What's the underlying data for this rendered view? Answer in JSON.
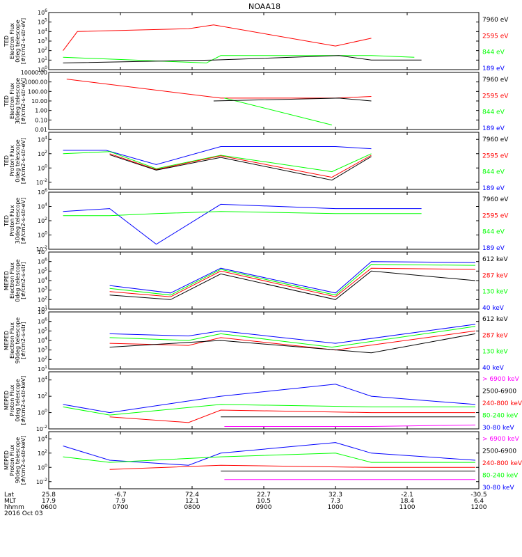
{
  "title": "NOAA18",
  "footer": {
    "row_labels": [
      "Lat",
      "MLT",
      "hhmm",
      "2016 Oct 03"
    ],
    "ticks": [
      {
        "lat": "25.8",
        "mlt": "17.9",
        "hhmm": "0600"
      },
      {
        "lat": "-6.7",
        "mlt": "7.9",
        "hhmm": "0700"
      },
      {
        "lat": "72.4",
        "mlt": "12.1",
        "hhmm": "0800"
      },
      {
        "lat": "22.7",
        "mlt": "10.5",
        "hhmm": "0900"
      },
      {
        "lat": "32.3",
        "mlt": "7.3",
        "hhmm": "1000"
      },
      {
        "lat": "-2.1",
        "mlt": "18.4",
        "hhmm": "1100"
      },
      {
        "lat": "-30.5",
        "mlt": "6.4",
        "hhmm": "1200"
      }
    ]
  },
  "colors": {
    "black": "#000000",
    "red": "#ff0000",
    "green": "#00ff00",
    "blue": "#0000ff",
    "magenta": "#ff00ff",
    "axis": "#000000"
  },
  "chart_data": [
    {
      "type": "line",
      "instrument": "TED",
      "ylabel": [
        "TED",
        "Electron Flux",
        "0deg telescope",
        "[#/cm2-s-str-eV]"
      ],
      "yscale": "log",
      "ylim": [
        1,
        1000000
      ],
      "ytick_labels": [
        "10^0",
        "10^1",
        "10^2",
        "10^3",
        "10^4",
        "10^5",
        "10^6"
      ],
      "legend": [
        {
          "label": "7960 eV",
          "color": "black"
        },
        {
          "label": "2595 eV",
          "color": "red"
        },
        {
          "label": "844 eV",
          "color": "green"
        },
        {
          "label": "189 eV",
          "color": "blue"
        }
      ],
      "series": [
        {
          "color": "red",
          "points": [
            [
              0.2,
              100
            ],
            [
              0.4,
              10000
            ],
            [
              1.95,
              20000
            ],
            [
              2.3,
              50000
            ],
            [
              4.0,
              300
            ],
            [
              4.5,
              2000
            ]
          ]
        },
        {
          "color": "green",
          "points": [
            [
              0.2,
              20
            ],
            [
              2.2,
              5
            ],
            [
              2.4,
              30
            ],
            [
              4.5,
              30
            ],
            [
              5.1,
              20
            ]
          ]
        },
        {
          "color": "black",
          "points": [
            [
              0.2,
              5
            ],
            [
              2.3,
              10
            ],
            [
              4.05,
              30
            ],
            [
              4.5,
              10
            ],
            [
              5.2,
              10
            ]
          ]
        }
      ]
    },
    {
      "type": "line",
      "instrument": "TED",
      "ylabel": [
        "TED",
        "Electron Flux",
        "30deg telescope",
        "[#/cm2-s-str-eV]"
      ],
      "yscale": "log",
      "ylim": [
        0.01,
        10000
      ],
      "ytick_labels": [
        "0.01",
        "0.10",
        "1.00",
        "10.00",
        "100.00",
        "1000.00",
        "10000.00"
      ],
      "legend": [
        {
          "label": "7960 eV",
          "color": "black"
        },
        {
          "label": "2595 eV",
          "color": "red"
        },
        {
          "label": "844 eV",
          "color": "green"
        },
        {
          "label": "189 eV",
          "color": "blue"
        }
      ],
      "series": [
        {
          "color": "red",
          "points": [
            [
              0.25,
              2000
            ],
            [
              2.4,
              20
            ],
            [
              4.0,
              20
            ],
            [
              4.5,
              30
            ]
          ]
        },
        {
          "color": "green",
          "points": [
            [
              2.45,
              20
            ],
            [
              3.95,
              0.03
            ]
          ]
        },
        {
          "color": "black",
          "points": [
            [
              2.3,
              10
            ],
            [
              4.05,
              20
            ],
            [
              4.5,
              10
            ]
          ]
        }
      ]
    },
    {
      "type": "line",
      "instrument": "TED",
      "ylabel": [
        "TED",
        "Proton Flux",
        "0deg telescope",
        "[#/cm2-s-str-eV]"
      ],
      "yscale": "log",
      "ylim": [
        0.001,
        100000
      ],
      "ytick_labels": [
        "10^-2",
        "10^0",
        "10^2",
        "10^4"
      ],
      "legend": [
        {
          "label": "7960 eV",
          "color": "black"
        },
        {
          "label": "2595 eV",
          "color": "red"
        },
        {
          "label": "844 eV",
          "color": "green"
        },
        {
          "label": "189 eV",
          "color": "blue"
        }
      ],
      "series": [
        {
          "color": "blue",
          "points": [
            [
              0.2,
              300
            ],
            [
              0.8,
              300
            ],
            [
              1.5,
              3
            ],
            [
              2.4,
              1000
            ],
            [
              4.0,
              1000
            ],
            [
              4.5,
              500
            ]
          ]
        },
        {
          "color": "green",
          "points": [
            [
              0.2,
              100
            ],
            [
              0.85,
              200
            ],
            [
              1.5,
              0.8
            ],
            [
              2.4,
              60
            ],
            [
              3.95,
              0.3
            ],
            [
              4.5,
              100
            ]
          ]
        },
        {
          "color": "red",
          "points": [
            [
              0.85,
              100
            ],
            [
              1.5,
              0.6
            ],
            [
              2.4,
              50
            ],
            [
              3.95,
              0.05
            ],
            [
              4.5,
              60
            ]
          ]
        },
        {
          "color": "black",
          "points": [
            [
              0.85,
              70
            ],
            [
              1.5,
              0.5
            ],
            [
              2.4,
              30
            ],
            [
              3.95,
              0.02
            ],
            [
              4.5,
              40
            ]
          ]
        }
      ]
    },
    {
      "type": "line",
      "instrument": "TED",
      "ylabel": [
        "TED",
        "Proton Flux",
        "30deg telescope",
        "[#/cm2-s-str-eV]"
      ],
      "yscale": "log",
      "ylim": [
        0.01,
        1000000
      ],
      "ytick_labels": [
        "10^-2",
        "10^0",
        "10^2",
        "10^4",
        "10^6"
      ],
      "legend": [
        {
          "label": "7960 eV",
          "color": "black"
        },
        {
          "label": "2595 eV",
          "color": "red"
        },
        {
          "label": "844 eV",
          "color": "green"
        },
        {
          "label": "189 eV",
          "color": "blue"
        }
      ],
      "series": [
        {
          "color": "blue",
          "points": [
            [
              0.2,
              2000
            ],
            [
              0.85,
              5000
            ],
            [
              1.5,
              0.05
            ],
            [
              2.4,
              20000
            ],
            [
              4.0,
              5000
            ],
            [
              5.2,
              5000
            ]
          ]
        },
        {
          "color": "green",
          "points": [
            [
              0.2,
              500
            ],
            [
              0.85,
              500
            ],
            [
              1.5,
              1000
            ],
            [
              2.4,
              2000
            ],
            [
              4.0,
              1000
            ],
            [
              5.2,
              1000
            ]
          ]
        }
      ]
    },
    {
      "type": "line",
      "instrument": "MEPED",
      "ylabel": [
        "MEPED",
        "Electron Flux",
        "0deg telescope",
        "[#/cm2-s-str]"
      ],
      "yscale": "log",
      "ylim": [
        10,
        10000000
      ],
      "ytick_labels": [
        "10^1",
        "10^2",
        "10^3",
        "10^4",
        "10^5",
        "10^6",
        "10^7"
      ],
      "legend": [
        {
          "label": "612 keV",
          "color": "black"
        },
        {
          "label": "287 keV",
          "color": "red"
        },
        {
          "label": "130 keV",
          "color": "green"
        },
        {
          "label": "40 keV",
          "color": "blue"
        }
      ],
      "series": [
        {
          "color": "blue",
          "points": [
            [
              0.85,
              3000
            ],
            [
              1.7,
              500
            ],
            [
              2.4,
              200000
            ],
            [
              4.0,
              500
            ],
            [
              4.5,
              1000000
            ],
            [
              5.95,
              800000
            ]
          ]
        },
        {
          "color": "green",
          "points": [
            [
              0.85,
              1500
            ],
            [
              1.7,
              300
            ],
            [
              2.4,
              150000
            ],
            [
              4.0,
              300
            ],
            [
              4.5,
              500000
            ],
            [
              5.95,
              400000
            ]
          ]
        },
        {
          "color": "red",
          "points": [
            [
              0.85,
              700
            ],
            [
              1.7,
              200
            ],
            [
              2.4,
              100000
            ],
            [
              4.0,
              200
            ],
            [
              4.5,
              200000
            ],
            [
              5.95,
              150000
            ]
          ]
        },
        {
          "color": "black",
          "points": [
            [
              0.85,
              300
            ],
            [
              1.7,
              100
            ],
            [
              2.4,
              50000
            ],
            [
              4.0,
              100
            ],
            [
              4.5,
              100000
            ],
            [
              5.95,
              10000
            ]
          ]
        }
      ]
    },
    {
      "type": "line",
      "instrument": "MEPED",
      "ylabel": [
        "MEPED",
        "Electron Flux",
        "90deg telescope",
        "[#/cm2-s-str]"
      ],
      "yscale": "log",
      "ylim": [
        10,
        10000000
      ],
      "ytick_labels": [
        "10^1",
        "10^2",
        "10^3",
        "10^4",
        "10^5",
        "10^6",
        "10^7"
      ],
      "legend": [
        {
          "label": "612 keV",
          "color": "black"
        },
        {
          "label": "287 keV",
          "color": "red"
        },
        {
          "label": "130 keV",
          "color": "green"
        },
        {
          "label": "40 keV",
          "color": "blue"
        }
      ],
      "series": [
        {
          "color": "blue",
          "points": [
            [
              0.85,
              50000
            ],
            [
              1.95,
              30000
            ],
            [
              2.4,
              100000
            ],
            [
              4.0,
              5000
            ],
            [
              5.95,
              500000
            ]
          ]
        },
        {
          "color": "green",
          "points": [
            [
              0.85,
              20000
            ],
            [
              1.95,
              10000
            ],
            [
              2.4,
              50000
            ],
            [
              3.95,
              2000
            ],
            [
              5.95,
              300000
            ]
          ]
        },
        {
          "color": "red",
          "points": [
            [
              0.85,
              5000
            ],
            [
              1.95,
              3000
            ],
            [
              2.4,
              20000
            ],
            [
              4.0,
              1000
            ],
            [
              5.95,
              100000
            ]
          ]
        },
        {
          "color": "black",
          "points": [
            [
              0.85,
              2000
            ],
            [
              2.4,
              10000
            ],
            [
              4.5,
              500
            ],
            [
              5.95,
              50000
            ]
          ]
        }
      ]
    },
    {
      "type": "line",
      "instrument": "MEPED",
      "ylabel": [
        "MEPED",
        "Proton Flux",
        "0deg telescope",
        "[#/cm2-s-str-keV]"
      ],
      "yscale": "log",
      "ylim": [
        0.01,
        100000
      ],
      "ytick_labels": [
        "10^-2",
        "10^0",
        "10^2",
        "10^4"
      ],
      "legend": [
        {
          "label": "> 6900 keV",
          "color": "magenta"
        },
        {
          "label": "2500-6900",
          "color": "black"
        },
        {
          "label": "240-800 keV",
          "color": "red"
        },
        {
          "label": "80-240 keV",
          "color": "green"
        },
        {
          "label": "30-80 keV",
          "color": "blue"
        }
      ],
      "series": [
        {
          "color": "blue",
          "points": [
            [
              0.2,
              10
            ],
            [
              0.85,
              1
            ],
            [
              2.4,
              100
            ],
            [
              4.0,
              3000
            ],
            [
              4.5,
              100
            ],
            [
              5.95,
              10
            ]
          ]
        },
        {
          "color": "green",
          "points": [
            [
              0.2,
              5
            ],
            [
              0.85,
              0.5
            ],
            [
              2.4,
              10
            ],
            [
              4.5,
              5
            ],
            [
              5.95,
              5
            ]
          ]
        },
        {
          "color": "red",
          "points": [
            [
              0.85,
              0.3
            ],
            [
              1.95,
              0.06
            ],
            [
              2.4,
              2
            ],
            [
              4.5,
              1
            ],
            [
              5.95,
              1
            ]
          ]
        },
        {
          "color": "black",
          "points": [
            [
              2.4,
              0.3
            ],
            [
              4.5,
              0.3
            ],
            [
              5.95,
              0.3
            ]
          ]
        },
        {
          "color": "magenta",
          "points": [
            [
              2.45,
              0.02
            ],
            [
              4.5,
              0.02
            ],
            [
              5.95,
              0.03
            ]
          ]
        }
      ]
    },
    {
      "type": "line",
      "instrument": "MEPED",
      "ylabel": [
        "MEPED",
        "Proton Flux",
        "90deg telescope",
        "[#/cm2-s-str-keV]"
      ],
      "yscale": "log",
      "ylim": [
        0.001,
        100000
      ],
      "ytick_labels": [
        "10^-2",
        "10^0",
        "10^2",
        "10^4"
      ],
      "legend": [
        {
          "label": "> 6900 keV",
          "color": "magenta"
        },
        {
          "label": "2500-6900",
          "color": "black"
        },
        {
          "label": "240-800 keV",
          "color": "red"
        },
        {
          "label": "80-240 keV",
          "color": "green"
        },
        {
          "label": "30-80 keV",
          "color": "blue"
        }
      ],
      "series": [
        {
          "color": "blue",
          "points": [
            [
              0.2,
              1000
            ],
            [
              0.85,
              10
            ],
            [
              1.95,
              2
            ],
            [
              2.4,
              100
            ],
            [
              4.0,
              3000
            ],
            [
              4.5,
              100
            ],
            [
              5.95,
              10
            ]
          ]
        },
        {
          "color": "green",
          "points": [
            [
              0.2,
              30
            ],
            [
              0.85,
              5
            ],
            [
              2.4,
              30
            ],
            [
              4.0,
              100
            ],
            [
              4.5,
              5
            ],
            [
              5.95,
              5
            ]
          ]
        },
        {
          "color": "red",
          "points": [
            [
              0.85,
              0.5
            ],
            [
              2.4,
              2
            ],
            [
              4.5,
              1
            ],
            [
              5.95,
              1
            ]
          ]
        },
        {
          "color": "black",
          "points": [
            [
              2.4,
              0.3
            ],
            [
              4.5,
              0.3
            ],
            [
              5.95,
              0.3
            ]
          ]
        },
        {
          "color": "magenta",
          "points": [
            [
              2.45,
              0.02
            ],
            [
              4.5,
              0.02
            ],
            [
              5.95,
              0.02
            ]
          ]
        }
      ]
    }
  ]
}
